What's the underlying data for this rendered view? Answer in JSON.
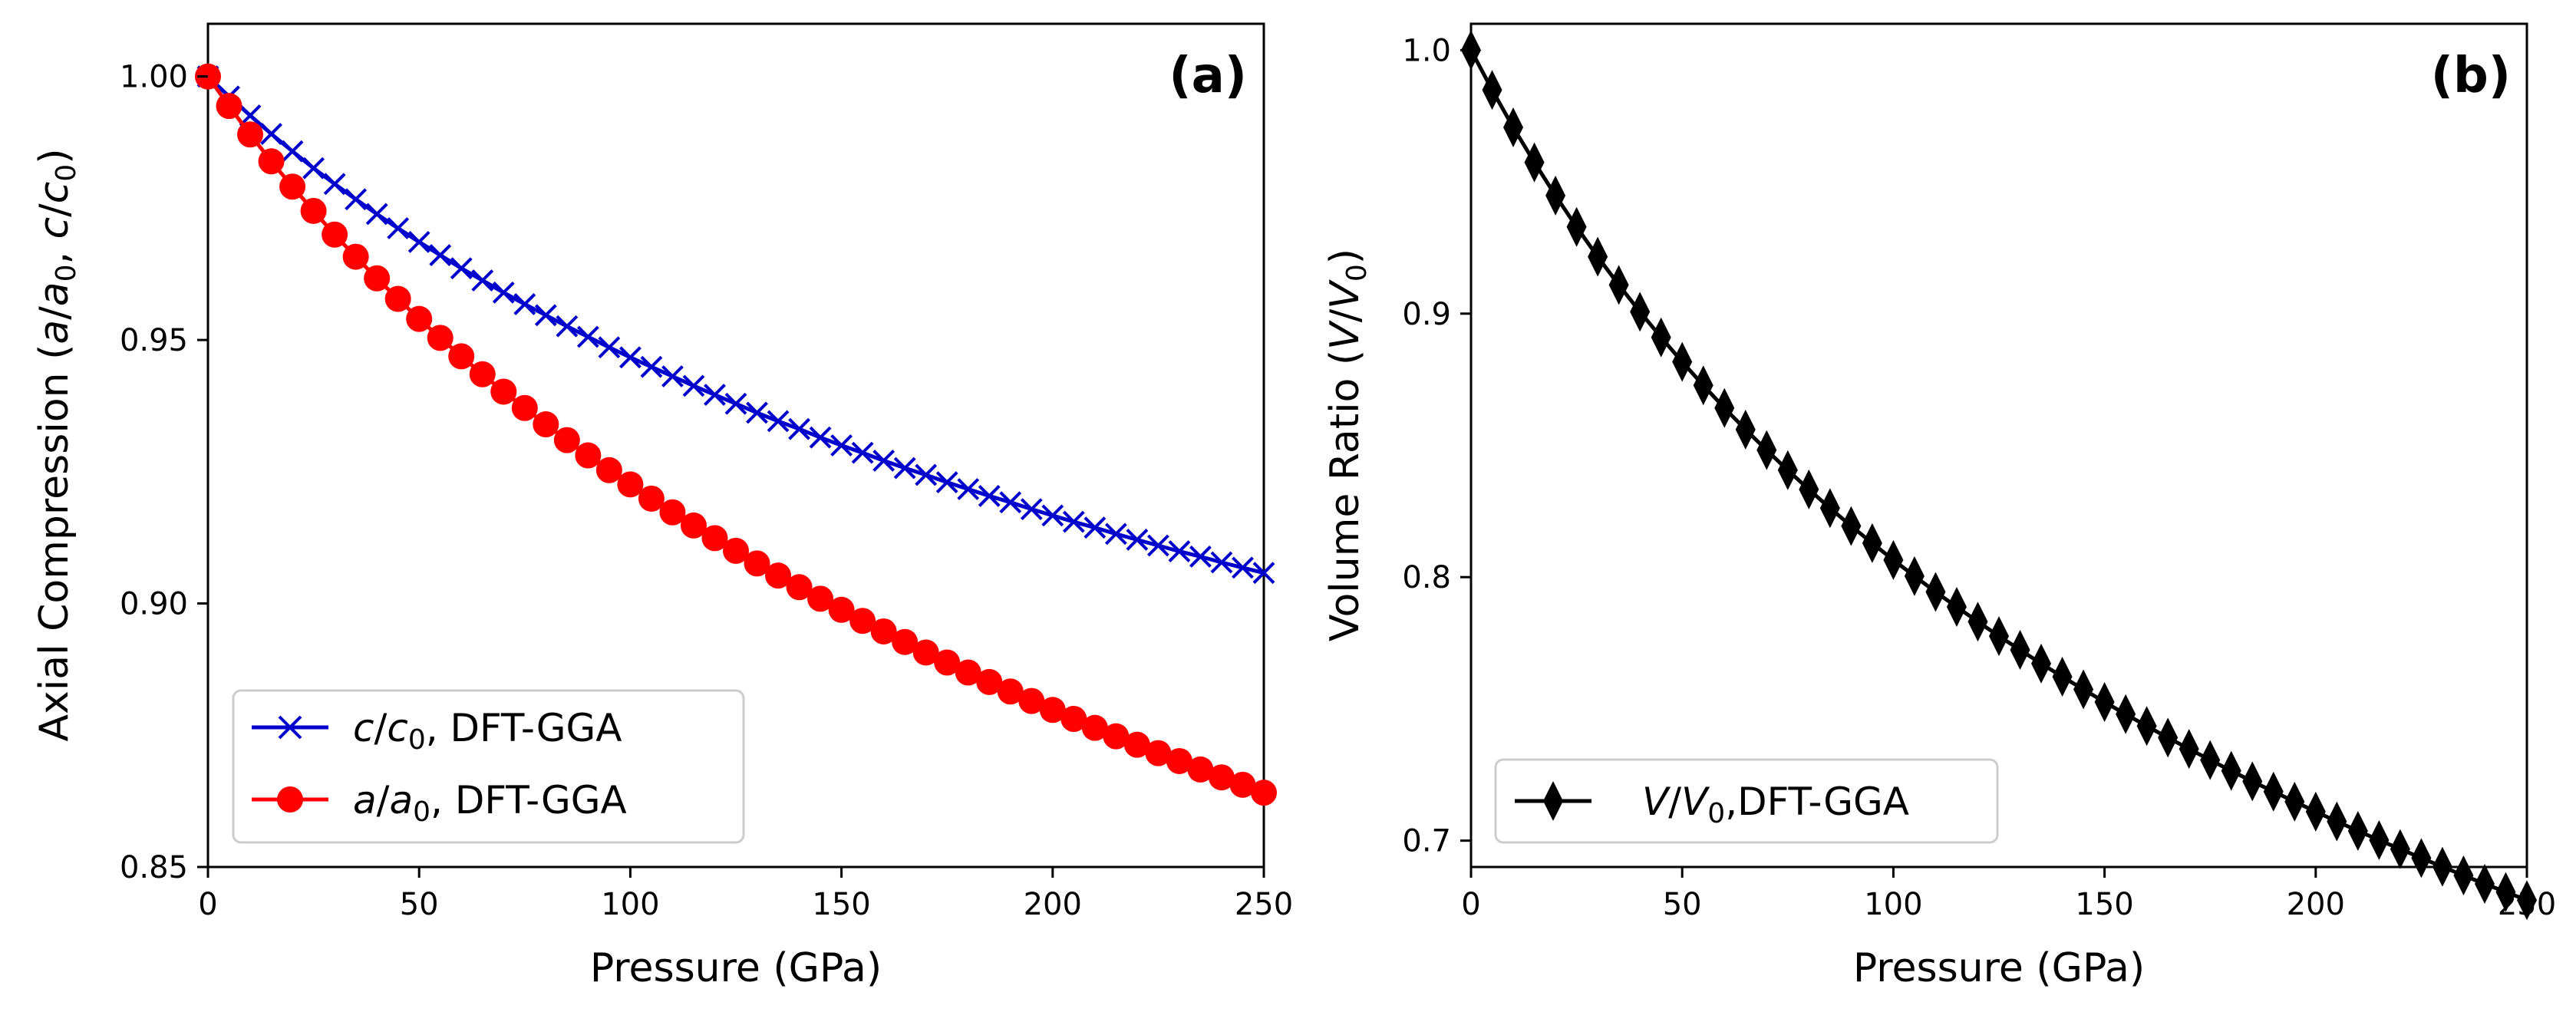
{
  "chart_data": [
    {
      "type": "line",
      "panel_label": "(a)",
      "xlabel": "Pressure (GPa)",
      "ylabel": "Axial Compression (a/a0, c/c0)",
      "ylabel_parts": {
        "prefix": "Axial Compression (",
        "v1": "a",
        "s1": "/",
        "v2": "a",
        "sub2": "0",
        "mid": ", ",
        "v3": "c",
        "s3": "/",
        "v4": "c",
        "sub4": "0",
        "suffix": ")"
      },
      "xlim": [
        0,
        250
      ],
      "ylim": [
        0.85,
        1.01
      ],
      "xticks": [
        "0",
        "50",
        "100",
        "150",
        "200",
        "250"
      ],
      "yticks": [
        "0.85",
        "0.90",
        "0.95",
        "1.00"
      ],
      "grid": false,
      "legend_position": "bottom-left",
      "series": [
        {
          "name": "c/c0, DFT-GGA",
          "name_parts": {
            "v1": "c",
            "s1": "/",
            "v2": "c",
            "sub": "0",
            "rest": ", DFT-GGA"
          },
          "color": "#0000cc",
          "marker": "x",
          "x": [
            0,
            5,
            10,
            15,
            20,
            25,
            30,
            35,
            40,
            45,
            50,
            55,
            60,
            65,
            70,
            75,
            80,
            85,
            90,
            95,
            100,
            105,
            110,
            115,
            120,
            125,
            130,
            135,
            140,
            145,
            150,
            155,
            160,
            165,
            170,
            175,
            180,
            185,
            190,
            195,
            200,
            205,
            210,
            215,
            220,
            225,
            230,
            235,
            240,
            245,
            250
          ],
          "y": [
            1.0,
            0.9962,
            0.9926,
            0.9891,
            0.9858,
            0.9826,
            0.9796,
            0.9767,
            0.9739,
            0.9712,
            0.9686,
            0.9661,
            0.9636,
            0.9613,
            0.959,
            0.9568,
            0.9547,
            0.9526,
            0.9506,
            0.9486,
            0.9467,
            0.9449,
            0.9431,
            0.9413,
            0.9396,
            0.9379,
            0.9362,
            0.9346,
            0.9331,
            0.9315,
            0.93,
            0.9286,
            0.9271,
            0.9257,
            0.9244,
            0.923,
            0.9217,
            0.9204,
            0.9192,
            0.9179,
            0.9167,
            0.9155,
            0.9144,
            0.9132,
            0.9121,
            0.911,
            0.9099,
            0.9089,
            0.9078,
            0.9068,
            0.9058
          ]
        },
        {
          "name": "a/a0, DFT-GGA",
          "name_parts": {
            "v1": "a",
            "s1": "/",
            "v2": "a",
            "sub": "0",
            "rest": ", DFT-GGA"
          },
          "color": "#ff0000",
          "marker": "o",
          "x": [
            0,
            5,
            10,
            15,
            20,
            25,
            30,
            35,
            40,
            45,
            50,
            55,
            60,
            65,
            70,
            75,
            80,
            85,
            90,
            95,
            100,
            105,
            110,
            115,
            120,
            125,
            130,
            135,
            140,
            145,
            150,
            155,
            160,
            165,
            170,
            175,
            180,
            185,
            190,
            195,
            200,
            205,
            210,
            215,
            220,
            225,
            230,
            235,
            240,
            245,
            250
          ],
          "y": [
            1.0,
            0.9944,
            0.989,
            0.9839,
            0.9791,
            0.9745,
            0.97,
            0.9658,
            0.9617,
            0.9578,
            0.954,
            0.9504,
            0.9469,
            0.9435,
            0.9402,
            0.9371,
            0.934,
            0.931,
            0.9281,
            0.9253,
            0.9226,
            0.9199,
            0.9173,
            0.9148,
            0.9124,
            0.91,
            0.9076,
            0.9053,
            0.9031,
            0.9009,
            0.8988,
            0.8967,
            0.8947,
            0.8927,
            0.8907,
            0.8888,
            0.8869,
            0.8851,
            0.8833,
            0.8815,
            0.8798,
            0.8781,
            0.8764,
            0.8748,
            0.8732,
            0.8716,
            0.8701,
            0.8685,
            0.867,
            0.8656,
            0.8641
          ]
        }
      ]
    },
    {
      "type": "line",
      "panel_label": "(b)",
      "xlabel": "Pressure (GPa)",
      "ylabel": "Volume Ratio (V/V0)",
      "ylabel_parts": {
        "prefix": "Volume Ratio (",
        "v1": "V",
        "s1": "/",
        "v2": "V",
        "sub": "0",
        "suffix": ")"
      },
      "xlim": [
        0,
        250
      ],
      "ylim": [
        0.69,
        1.01
      ],
      "xticks": [
        "0",
        "50",
        "100",
        "150",
        "200",
        "250"
      ],
      "yticks": [
        "0.7",
        "0.8",
        "0.9",
        "1.0"
      ],
      "grid": false,
      "legend_position": "bottom-left",
      "series": [
        {
          "name": "V/V0,DFT-GGA",
          "name_parts": {
            "v1": "V",
            "s1": "/",
            "v2": "V",
            "sub": "0",
            "rest": ",DFT-GGA"
          },
          "color": "#000000",
          "marker": "d",
          "x": [
            0,
            5,
            10,
            15,
            20,
            25,
            30,
            35,
            40,
            45,
            50,
            55,
            60,
            65,
            70,
            75,
            80,
            85,
            90,
            95,
            100,
            105,
            110,
            115,
            120,
            125,
            130,
            135,
            140,
            145,
            150,
            155,
            160,
            165,
            170,
            175,
            180,
            185,
            190,
            195,
            200,
            205,
            210,
            215,
            220,
            225,
            230,
            235,
            240,
            245,
            250
          ],
          "y": [
            1.0,
            0.9849,
            0.9707,
            0.9574,
            0.9448,
            0.9329,
            0.9216,
            0.9109,
            0.9007,
            0.891,
            0.8817,
            0.8728,
            0.8642,
            0.856,
            0.8482,
            0.8406,
            0.8333,
            0.8262,
            0.8194,
            0.8129,
            0.8065,
            0.8004,
            0.7944,
            0.7887,
            0.7831,
            0.7776,
            0.7724,
            0.7672,
            0.7622,
            0.7574,
            0.7526,
            0.748,
            0.7435,
            0.7391,
            0.7348,
            0.7306,
            0.7265,
            0.7225,
            0.7186,
            0.7148,
            0.711,
            0.7073,
            0.7037,
            0.7002,
            0.6968,
            0.6934,
            0.6901,
            0.6868,
            0.6836,
            0.6805,
            0.6774
          ]
        }
      ]
    }
  ]
}
